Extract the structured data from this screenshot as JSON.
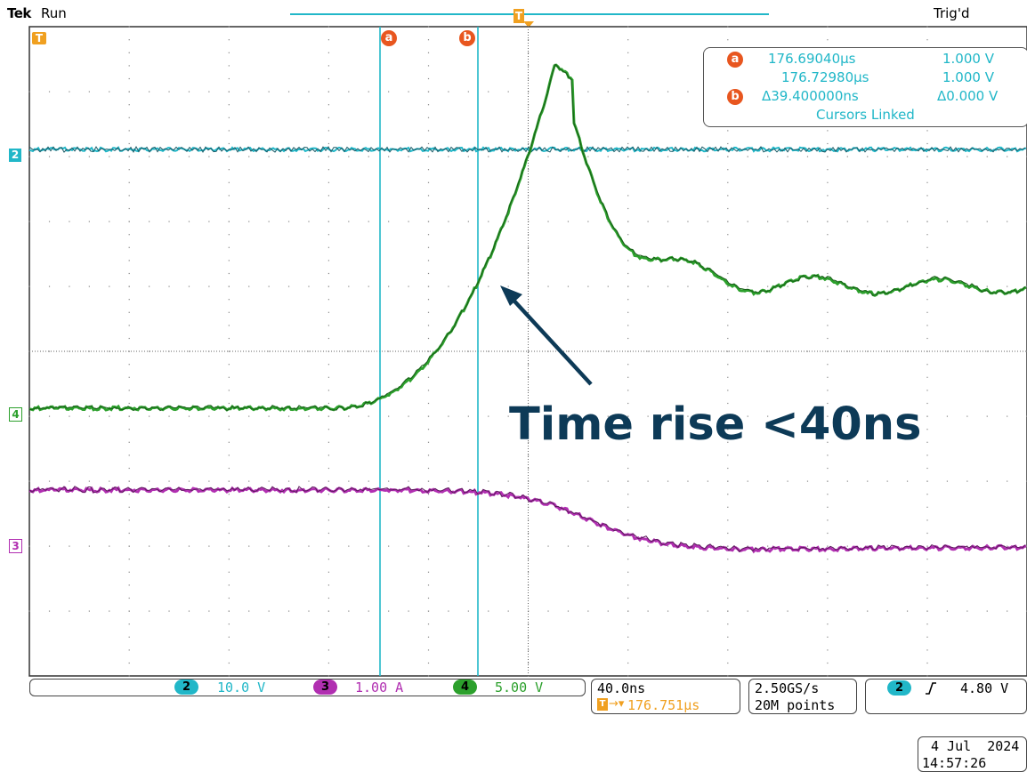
{
  "header": {
    "brand": "Tek",
    "run_state": "Run",
    "trigger_state": "Trig'd"
  },
  "markers": {
    "trigger_pos_icon": "T",
    "cursor_a_label": "a",
    "cursor_b_label": "b",
    "trigger_top_icon": "T",
    "channel_markers": [
      {
        "label": "2",
        "color": "#21b7c8"
      },
      {
        "label": "4",
        "color": "#2ca02c"
      },
      {
        "label": "3",
        "color": "#b12fb1"
      }
    ]
  },
  "cursor_readout": {
    "a_badge": "a",
    "b_badge": "b",
    "a_time": "176.69040µs",
    "a_volt": "1.000 V",
    "b_time": "176.72980µs",
    "b_volt": "1.000 V",
    "delta_time": "Δ39.400000ns",
    "delta_volt": "Δ0.000 V",
    "linked": "Cursors Linked"
  },
  "annotation": {
    "text": "Time rise <40ns"
  },
  "channels": {
    "ch2": {
      "number": "2",
      "scale": "10.0 V",
      "color": "#21b7c8"
    },
    "ch3": {
      "number": "3",
      "scale": "1.00 A",
      "color": "#b12fb1"
    },
    "ch4": {
      "number": "4",
      "scale": "5.00 V",
      "color": "#2ca02c"
    }
  },
  "timebase": {
    "scale": "40.0ns",
    "position": "176.751µs"
  },
  "acquisition": {
    "rate": "2.50GS/s",
    "points": "20M points"
  },
  "trigger": {
    "source": "2",
    "slope_icon": "rising-edge-icon",
    "level": "4.80 V"
  },
  "datetime": {
    "date": "4 Jul  2024",
    "time": "14:57:26"
  },
  "colors": {
    "ch2": "#21b7c8",
    "ch3": "#b12fb1",
    "ch4": "#2ca02c",
    "cursor": "#21b7c8",
    "cursor_badge": "#e8561f",
    "trigger": "#f0a020",
    "annotation": "#0d3a57"
  }
}
